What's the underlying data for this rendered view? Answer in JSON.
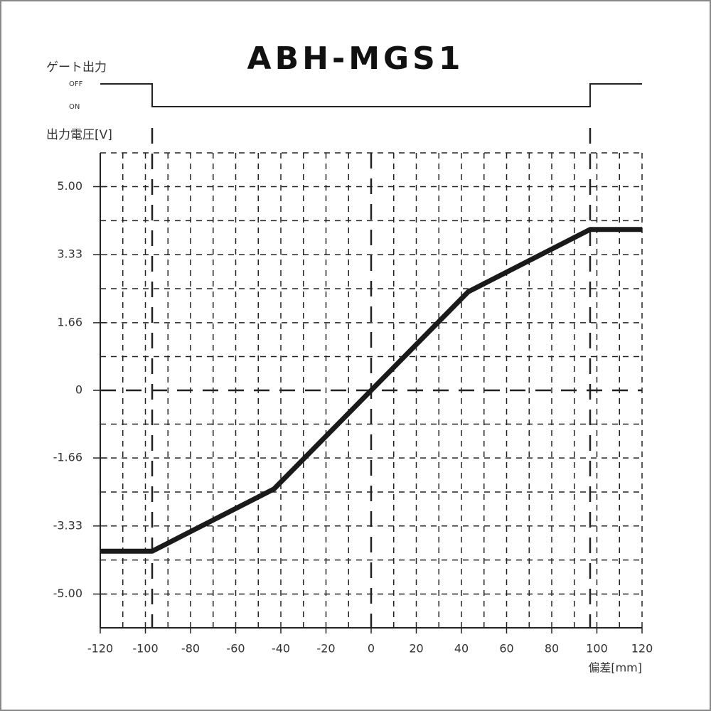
{
  "chart_data": {
    "type": "line",
    "title": "ABH-MGS1",
    "y_label": "出力電圧[V]",
    "x_label": "偏差[mm]",
    "x": [
      -120,
      -97,
      -43,
      43,
      97,
      120
    ],
    "series": [
      {
        "color": "#1a1a1a",
        "values": [
          -3.95,
          -3.95,
          -2.42,
          2.42,
          3.95,
          3.95
        ]
      }
    ],
    "xlim": [
      -120,
      120
    ],
    "xticks": [
      -120,
      -100,
      -80,
      -60,
      -40,
      -20,
      0,
      20,
      40,
      60,
      80,
      100,
      120
    ],
    "ylim": [
      -5.83,
      5.83
    ],
    "yticks": [
      {
        "value": -5,
        "label": "-5.00"
      },
      -3.33,
      -1.66,
      0,
      1.66,
      3.33,
      {
        "value": 5,
        "label": "5.00"
      }
    ],
    "grid": true,
    "gate": {
      "title": "ゲート出力",
      "off_label": "OFF",
      "on_label": "ON",
      "on_range": [
        -97,
        97
      ]
    }
  }
}
